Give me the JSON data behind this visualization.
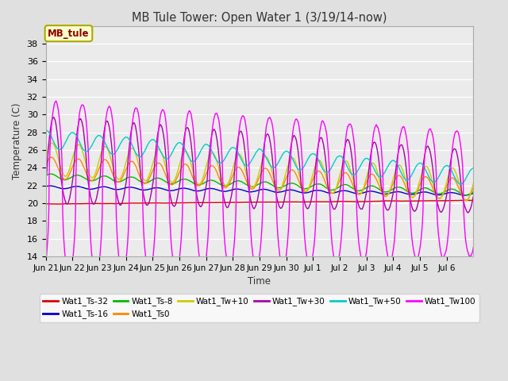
{
  "title": "MB Tule Tower: Open Water 1 (3/19/14-now)",
  "xlabel": "Time",
  "ylabel": "Temperature (C)",
  "ylim": [
    14,
    40
  ],
  "yticks": [
    14,
    16,
    18,
    20,
    22,
    24,
    26,
    28,
    30,
    32,
    34,
    36,
    38
  ],
  "bg_color": "#e0e0e0",
  "plot_bg": "#ebebeb",
  "legend_box_facecolor": "#ffffcc",
  "legend_box_edge": "#aaaa00",
  "annotation_text": "MB_tule",
  "annotation_fg": "#880000",
  "xtick_labels": [
    "Jun 21",
    "Jun 22",
    "Jun 23",
    "Jun 24",
    "Jun 25",
    "Jun 26",
    "Jun 27",
    "Jun 28",
    "Jun 29",
    "Jun 30",
    "Jul 1",
    "Jul 2",
    "Jul 3",
    "Jul 4",
    "Jul 5",
    "Jul 6"
  ],
  "grid_color": "#ffffff",
  "linewidth": 1.0,
  "series": [
    {
      "label": "Wat1_Ts-32",
      "color": "#dd0000"
    },
    {
      "label": "Wat1_Ts-16",
      "color": "#0000cc"
    },
    {
      "label": "Wat1_Ts-8",
      "color": "#00bb00"
    },
    {
      "label": "Wat1_Ts0",
      "color": "#ff8800"
    },
    {
      "label": "Wat1_Tw+10",
      "color": "#cccc00"
    },
    {
      "label": "Wat1_Tw+30",
      "color": "#aa00aa"
    },
    {
      "label": "Wat1_Tw+50",
      "color": "#00cccc"
    },
    {
      "label": "Wat1_Tw100",
      "color": "#ff00ff"
    }
  ]
}
